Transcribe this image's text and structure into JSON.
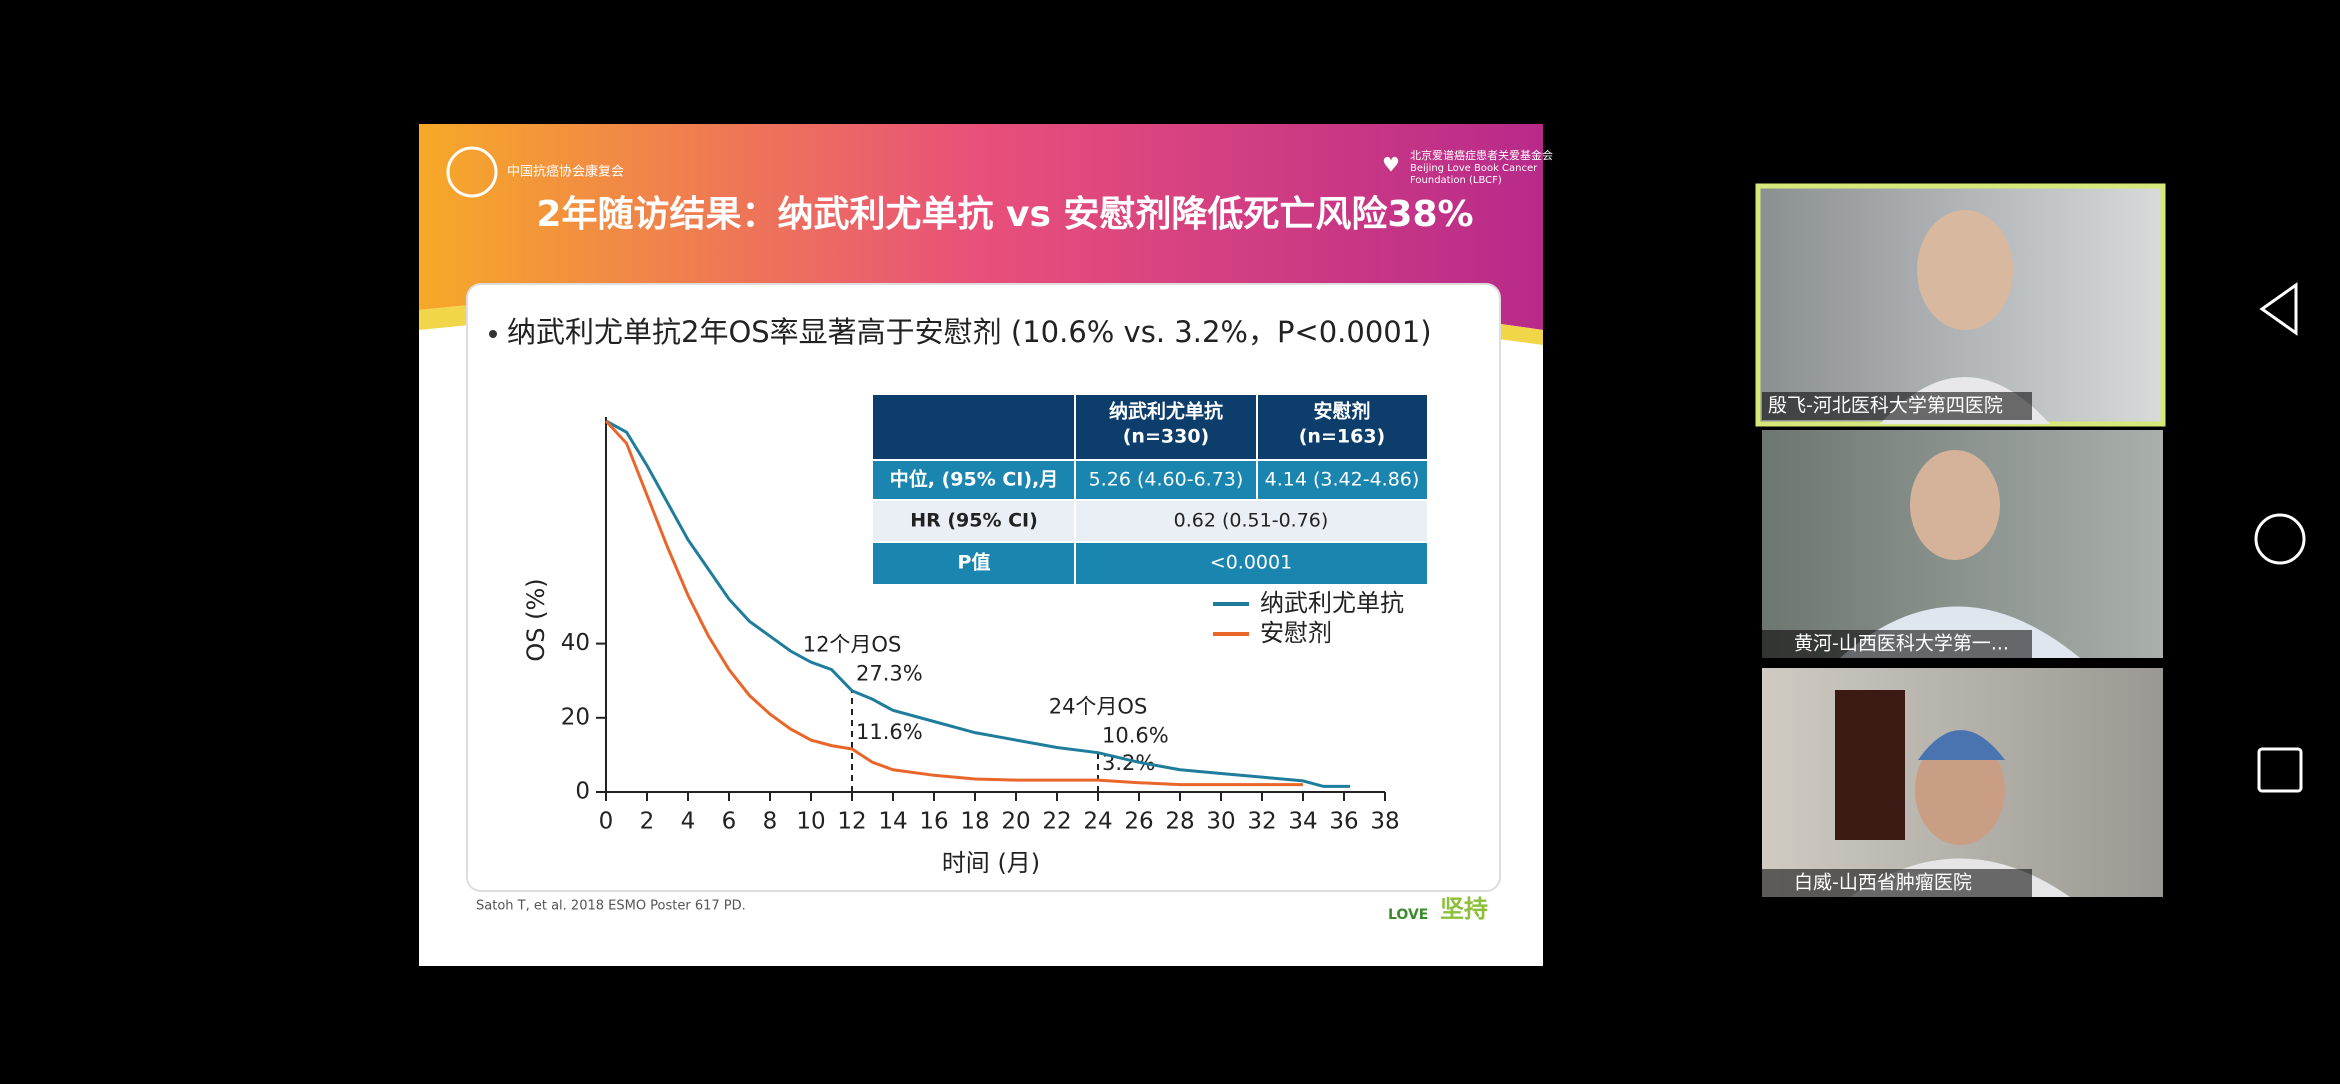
{
  "slide": {
    "org_left": "中国抗癌协会康复会",
    "org_right": [
      "北京爱谱癌症患者关爱基金会",
      "Beijing Love Book Cancer",
      "Foundation (LBCF)"
    ],
    "title": "2年随访结果：纳武利尤单抗 vs 安慰剂降低死亡风险38%",
    "bullet": "纳武利尤单抗2年OS率显著高于安慰剂 (10.6% vs. 3.2%，P<0.0001)",
    "table": {
      "columns": [
        {
          "name": "纳武利尤单抗",
          "n": "(n=330)"
        },
        {
          "name": "安慰剂",
          "n": "(n=163)"
        }
      ],
      "rows": [
        {
          "label": "中位, (95% CI),月",
          "cells": [
            "5.26 (4.60-6.73)",
            "4.14 (3.42-4.86)"
          ]
        },
        {
          "label": "HR (95% CI)",
          "cells": [
            "0.62 (0.51-0.76)"
          ]
        },
        {
          "label": "P值",
          "cells": [
            "<0.0001"
          ]
        }
      ]
    },
    "chart": {
      "type": "line",
      "y_label": "OS (%)",
      "x_label": "时间 (月)",
      "x": [
        0,
        1,
        2,
        3,
        4,
        5,
        6,
        7,
        8,
        9,
        10,
        11,
        12,
        13,
        14,
        16,
        18,
        20,
        22,
        24,
        26,
        28,
        30,
        32,
        34,
        35,
        36.3
      ],
      "series": [
        {
          "name": "纳武利尤单抗",
          "color": "#1f7d9c",
          "values": [
            100,
            97,
            88,
            78,
            68,
            60,
            52,
            46,
            42,
            38,
            35,
            33,
            27.3,
            25,
            22,
            19,
            16,
            14,
            12,
            10.6,
            8,
            6,
            5,
            4,
            3,
            1.5,
            1.5
          ]
        },
        {
          "name": "安慰剂",
          "color": "#e8662a",
          "values": [
            100,
            94,
            80,
            66,
            53,
            42,
            33,
            26,
            21,
            17,
            14,
            12.5,
            11.6,
            8,
            6,
            4.5,
            3.5,
            3.2,
            3.2,
            3.2,
            2.5,
            2,
            2,
            2,
            2,
            null,
            null
          ]
        }
      ],
      "xlim": [
        0,
        38
      ],
      "ylim": [
        0,
        100
      ],
      "xticks": [
        0,
        2,
        4,
        6,
        8,
        10,
        12,
        14,
        16,
        18,
        20,
        22,
        24,
        26,
        28,
        30,
        32,
        34,
        36,
        38
      ],
      "yticks": [
        0,
        20,
        40
      ],
      "landmarks": [
        {
          "label": "12个月OS",
          "x": 12,
          "values": [
            27.3,
            11.6
          ],
          "value_labels": [
            "27.3%",
            "11.6%"
          ]
        },
        {
          "label": "24个月OS",
          "x": 24,
          "values": [
            10.6,
            3.2
          ],
          "value_labels": [
            "10.6%",
            "3.2%"
          ]
        }
      ]
    },
    "citation": "Satoh T, et al. 2018 ESMO Poster 617 PD.",
    "logo": [
      "LOVE",
      "坚持"
    ]
  },
  "participants": [
    {
      "name": "殷飞-河北医科大学第四医院"
    },
    {
      "name": "黄河-山西医科大学第一..."
    },
    {
      "name": "白威-山西省肿瘤医院"
    }
  ]
}
